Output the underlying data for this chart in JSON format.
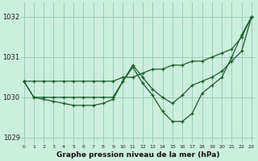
{
  "title": "Graphe pression niveau de la mer (hPa)",
  "bg_color": "#cceedd",
  "grid_color": "#99ccbb",
  "line_color": "#1a5c2a",
  "x_values": [
    0,
    1,
    2,
    3,
    4,
    5,
    6,
    7,
    8,
    9,
    10,
    11,
    12,
    13,
    14,
    15,
    16,
    17,
    18,
    19,
    20,
    21,
    22,
    23
  ],
  "series": {
    "line1": [
      1030.4,
      1030.4,
      1030.4,
      1030.4,
      1030.4,
      1030.4,
      1030.4,
      1030.4,
      1030.4,
      1030.4,
      1030.5,
      1030.5,
      1030.6,
      1030.7,
      1030.7,
      1030.8,
      1030.8,
      1030.9,
      1030.9,
      1031.0,
      1031.1,
      1031.2,
      1031.5,
      1032.0
    ],
    "line2": [
      1030.4,
      1030.0,
      1030.0,
      1030.0,
      1030.0,
      1030.0,
      1030.0,
      1030.0,
      1030.0,
      1030.0,
      1030.4,
      1030.8,
      1030.5,
      1030.2,
      1030.0,
      1029.85,
      1030.05,
      1030.3,
      1030.4,
      1030.5,
      1030.65,
      1030.9,
      1031.15,
      1032.0
    ],
    "line3": [
      1030.4,
      1030.0,
      1029.95,
      1029.9,
      1029.85,
      1029.8,
      1029.8,
      1029.8,
      1029.85,
      1029.95,
      1030.4,
      1030.75,
      1030.35,
      1030.05,
      1029.65,
      1029.4,
      1029.4,
      1029.6,
      1030.1,
      1030.3,
      1030.5,
      1031.0,
      1031.55,
      1032.0
    ]
  },
  "ylim": [
    1028.85,
    1032.35
  ],
  "yticks": [
    1029,
    1030,
    1031,
    1032
  ],
  "xticks": [
    0,
    1,
    2,
    3,
    4,
    5,
    6,
    7,
    8,
    9,
    10,
    11,
    12,
    13,
    14,
    15,
    16,
    17,
    18,
    19,
    20,
    21,
    22,
    23
  ],
  "xlim": [
    -0.3,
    23.3
  ]
}
